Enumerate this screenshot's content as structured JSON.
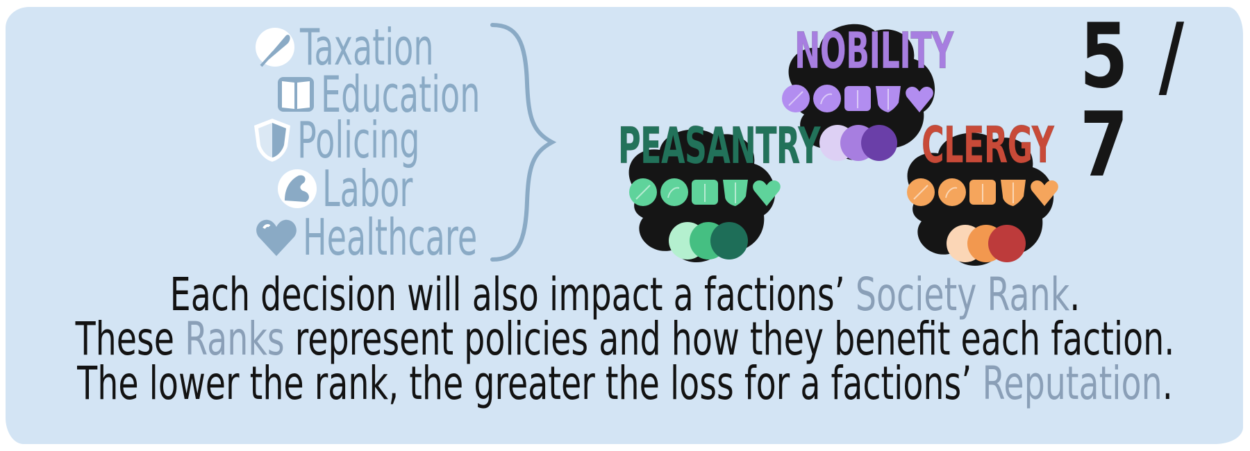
{
  "page_counter": "5 / 7",
  "policies": [
    {
      "label": "Taxation",
      "icon": "feather-icon"
    },
    {
      "label": "Education",
      "icon": "book-icon"
    },
    {
      "label": "Policing",
      "icon": "shield-icon"
    },
    {
      "label": "Labor",
      "icon": "arm-icon"
    },
    {
      "label": "Healthcare",
      "icon": "heart-icon"
    }
  ],
  "factions": [
    {
      "name": "NOBILITY",
      "label_color": "#a77ee0",
      "rank_icon_color": "#b28df0",
      "token_colors": [
        "#ddd0f4",
        "#a77ee0",
        "#6a3fa8"
      ]
    },
    {
      "name": "PEASANTRY",
      "label_color": "#22725a",
      "rank_icon_color": "#5fd39b",
      "token_colors": [
        "#b4f0cf",
        "#45bf82",
        "#1e6e58"
      ]
    },
    {
      "name": "CLERGY",
      "label_color": "#c84a38",
      "rank_icon_color": "#f5a55c",
      "token_colors": [
        "#fbd6b6",
        "#f2984f",
        "#bd3b3b"
      ]
    }
  ],
  "caption": {
    "line1": {
      "before": "Each decision will also impact a factions’ ",
      "highlight": "Society Rank",
      "after": "."
    },
    "line2": {
      "before": "These ",
      "highlight": "Ranks",
      "after": " represent policies and how they benefit each faction."
    },
    "line3": {
      "before": "The lower the rank, the greater the loss for a factions’ ",
      "highlight": "Reputation",
      "after": "."
    }
  },
  "colors": {
    "panel": "#d3e4f4",
    "policy_text": "#8aaac5",
    "highlight": "#8a9fb7",
    "caption_text": "#121212",
    "token_blob": "#151515"
  }
}
